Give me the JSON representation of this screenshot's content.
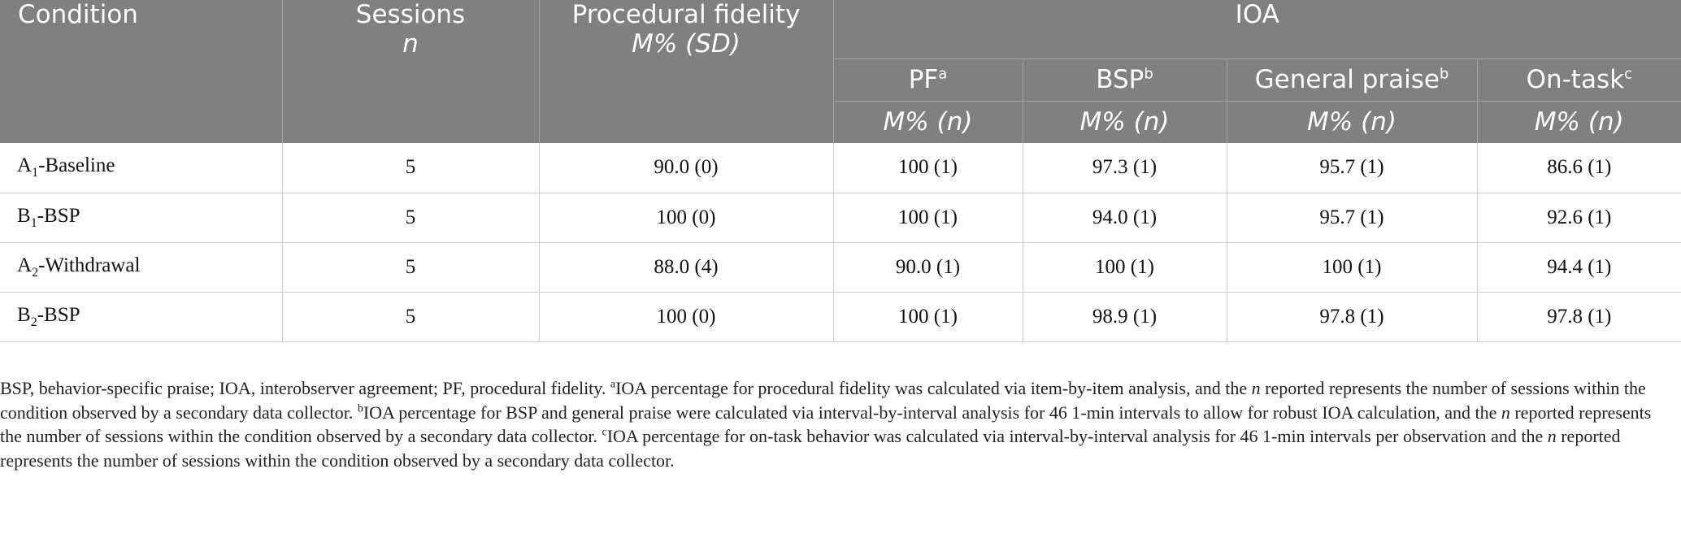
{
  "header": {
    "condition": "Condition",
    "sessions": "Sessions",
    "sessions_sub": "n",
    "fidelity": "Procedural fidelity",
    "fidelity_sub": "M% (SD)",
    "ioa": "IOA",
    "pf": "PF",
    "pf_sup": "a",
    "bsp": "BSP",
    "bsp_sup": "b",
    "general_praise": "General praise",
    "general_praise_sup": "b",
    "on_task": "On-task",
    "on_task_sup": "c",
    "stat_m": "M%",
    "stat_n": "n"
  },
  "rows": [
    {
      "cond_letter": "A",
      "cond_sub": "1",
      "cond_rest": "-Baseline",
      "sessions": "5",
      "fidelity": "90.0 (0)",
      "pf": "100 (1)",
      "bsp": "97.3 (1)",
      "gp": "95.7 (1)",
      "ontask": "86.6 (1)"
    },
    {
      "cond_letter": "B",
      "cond_sub": "1",
      "cond_rest": "-BSP",
      "sessions": "5",
      "fidelity": "100 (0)",
      "pf": "100 (1)",
      "bsp": "94.0 (1)",
      "gp": "95.7 (1)",
      "ontask": "92.6 (1)"
    },
    {
      "cond_letter": "A",
      "cond_sub": "2",
      "cond_rest": "-Withdrawal",
      "sessions": "5",
      "fidelity": "88.0 (4)",
      "pf": "90.0 (1)",
      "bsp": "100 (1)",
      "gp": "100 (1)",
      "ontask": "94.4 (1)"
    },
    {
      "cond_letter": "B",
      "cond_sub": "2",
      "cond_rest": "-BSP",
      "sessions": "5",
      "fidelity": "100 (0)",
      "pf": "100 (1)",
      "bsp": "98.9 (1)",
      "gp": "97.8 (1)",
      "ontask": "97.8 (1)"
    }
  ],
  "footnote": {
    "abbrev": "BSP, behavior-specific praise; IOA, interobserver agreement; PF, procedural fidelity.",
    "a_mark": "a",
    "a_text_1": "IOA percentage for procedural fidelity was calculated via item-by-item analysis, and the ",
    "n": "n",
    "a_text_2": " reported represents the number of sessions within the condition observed by a secondary data collector.",
    "b_mark": "b",
    "b_text_1": "IOA percentage for BSP and general praise were calculated via interval-by-interval analysis for 46 1-min intervals to allow for robust IOA calculation, and the ",
    "b_text_2": " reported represents the number of sessions within the condition observed by a secondary data collector.",
    "c_mark": "c",
    "c_text_1": "IOA percentage for on-task behavior was calculated via interval-by-interval analysis for 46 1-min intervals per observation and the ",
    "c_text_2": " reported represents the number of sessions within the condition observed by a secondary data collector."
  }
}
